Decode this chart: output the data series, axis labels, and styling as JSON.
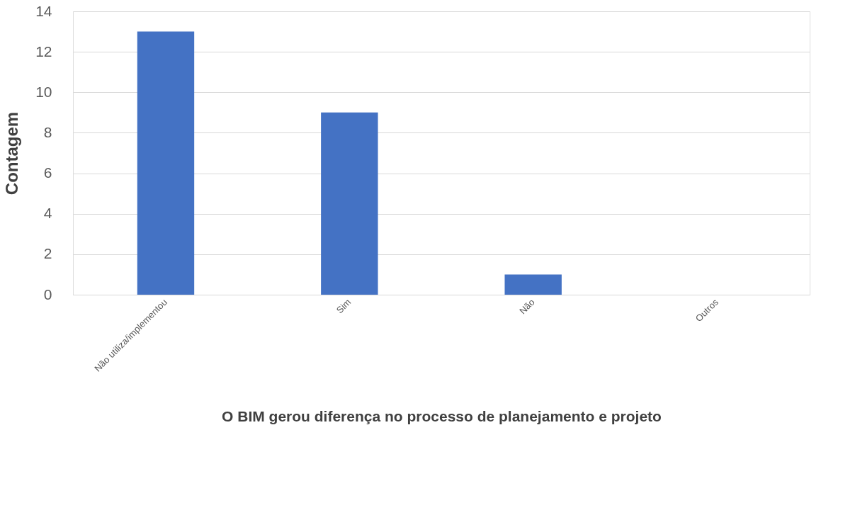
{
  "chart_data": {
    "type": "bar",
    "xlabel": "O BIM gerou diferença no processo de planejamento e projeto",
    "ylabel": "Contagem",
    "categories": [
      "Não utiliza/implementou",
      "Sim",
      "Não",
      "Outros"
    ],
    "values": [
      13,
      9,
      1,
      0
    ],
    "color": "#4472c4",
    "ylim": [
      0,
      14
    ],
    "yticks": [
      0,
      2,
      4,
      6,
      8,
      10,
      12,
      14
    ],
    "grid": "y"
  }
}
